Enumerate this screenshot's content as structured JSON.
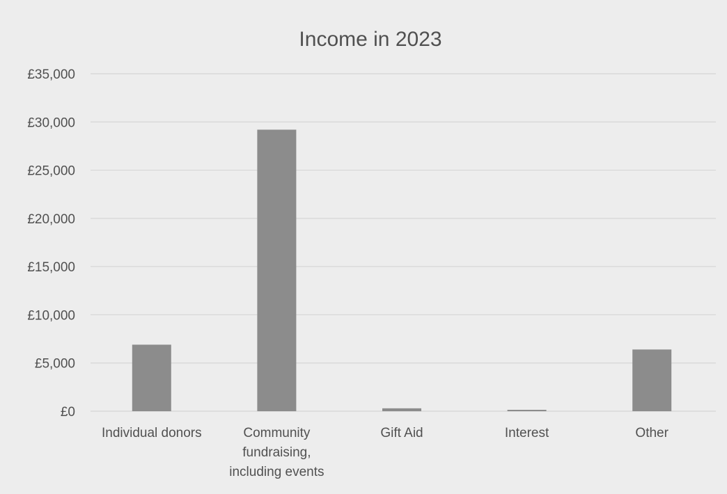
{
  "chart_data": {
    "type": "bar",
    "title": "Income in 2023",
    "xlabel": "",
    "ylabel": "",
    "categories": [
      [
        "Individual donors"
      ],
      [
        "Community",
        "fundraising,",
        "including events"
      ],
      [
        "Gift Aid"
      ],
      [
        "Interest"
      ],
      [
        "Other"
      ]
    ],
    "values": [
      6900,
      29200,
      300,
      100,
      6400
    ],
    "ylim": [
      0,
      35000
    ],
    "yticks": [
      0,
      5000,
      10000,
      15000,
      20000,
      25000,
      30000,
      35000
    ],
    "ytick_labels": [
      "£0",
      "£5,000",
      "£10,000",
      "£15,000",
      "£20,000",
      "£25,000",
      "£30,000",
      "£35,000"
    ],
    "grid": true,
    "legend": "none",
    "colors": {
      "bar": "#8c8c8c",
      "background": "#ededed",
      "grid": "#d6d6d6",
      "text": "#505050"
    }
  }
}
